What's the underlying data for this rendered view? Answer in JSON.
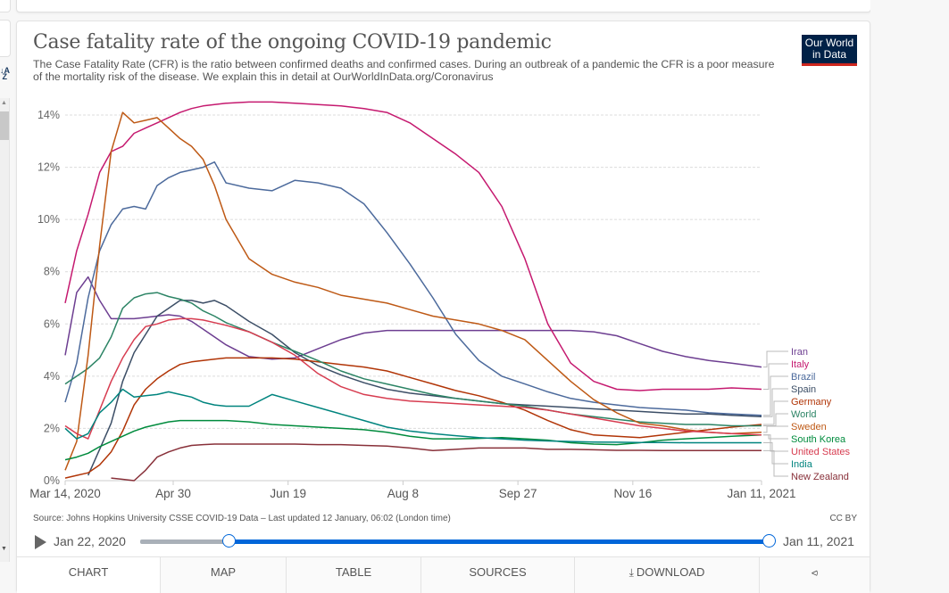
{
  "page": {
    "title": "Case fatality rate of the ongoing COVID-19 pandemic",
    "subtitle": "The Case Fatality Rate (CFR) is the ratio between confirmed deaths and confirmed cases. During an outbreak of a pandemic the CFR is a poor measure of the mortality risk of the disease. We explain this in detail at OurWorldInData.org/Coronavirus",
    "logo_line1": "Our World",
    "logo_line2": "in Data",
    "source": "Source: Johns Hopkins University CSSE COVID-19 Data – Last updated 12 January, 06:02 (London time)",
    "license": "CC BY",
    "timeline": {
      "start_label": "Jan 22, 2020",
      "end_label": "Jan 11, 2021",
      "start_handle_fraction": 0.14,
      "end_handle_fraction": 1.0
    },
    "tabs": [
      {
        "label": "CHART",
        "icon": "",
        "active": true
      },
      {
        "label": "MAP",
        "icon": "",
        "active": false
      },
      {
        "label": "TABLE",
        "icon": "",
        "active": false
      },
      {
        "label": "SOURCES",
        "icon": "",
        "active": false
      },
      {
        "label": "DOWNLOAD",
        "icon": "download-icon",
        "active": false
      },
      {
        "label": "",
        "icon": "share-icon",
        "active": false
      }
    ],
    "colors": {
      "accent": "#0066d9",
      "logo_bg": "#002147",
      "logo_bar": "#ce261e"
    }
  },
  "chart_data": {
    "type": "line",
    "title": "Case fatality rate of the ongoing COVID-19 pandemic",
    "xlabel": "",
    "ylabel": "",
    "x_unit": "days since Mar 14, 2020",
    "x": [
      0,
      5,
      10,
      15,
      20,
      25,
      30,
      35,
      40,
      45,
      50,
      55,
      60,
      65,
      70,
      80,
      90,
      100,
      110,
      120,
      130,
      140,
      150,
      160,
      170,
      180,
      190,
      200,
      210,
      220,
      230,
      240,
      250,
      260,
      270,
      280,
      290,
      303
    ],
    "xlim": [
      0,
      303
    ],
    "ylim": [
      0,
      14.5
    ],
    "x_ticks": [
      {
        "day": 0,
        "label": "Mar 14, 2020"
      },
      {
        "day": 47,
        "label": "Apr 30"
      },
      {
        "day": 97,
        "label": "Jun 19"
      },
      {
        "day": 147,
        "label": "Aug 8"
      },
      {
        "day": 197,
        "label": "Sep 27"
      },
      {
        "day": 247,
        "label": "Nov 16"
      },
      {
        "day": 303,
        "label": "Jan 11, 2021"
      }
    ],
    "y_ticks": [
      {
        "value": 0,
        "label": "0%"
      },
      {
        "value": 2,
        "label": "2%"
      },
      {
        "value": 4,
        "label": "4%"
      },
      {
        "value": 6,
        "label": "6%"
      },
      {
        "value": 8,
        "label": "8%"
      },
      {
        "value": 10,
        "label": "10%"
      },
      {
        "value": 12,
        "label": "12%"
      },
      {
        "value": 14,
        "label": "14%"
      }
    ],
    "grid": true,
    "legend": "right (line-end labels)",
    "series": [
      {
        "name": "Iran",
        "color": "#6d3e91",
        "values": [
          4.8,
          7.2,
          7.8,
          6.9,
          6.2,
          6.2,
          6.2,
          6.25,
          6.3,
          6.35,
          6.3,
          6.1,
          5.8,
          5.5,
          5.2,
          4.75,
          4.65,
          4.7,
          5.05,
          5.4,
          5.65,
          5.75,
          5.75,
          5.75,
          5.75,
          5.75,
          5.75,
          5.75,
          5.75,
          5.75,
          5.7,
          5.55,
          5.25,
          4.95,
          4.75,
          4.6,
          4.5,
          4.35
        ]
      },
      {
        "name": "Italy",
        "color": "#c5196f",
        "values": [
          6.8,
          8.8,
          10.2,
          11.8,
          12.6,
          12.8,
          13.3,
          13.5,
          13.7,
          13.9,
          14.1,
          14.25,
          14.35,
          14.4,
          14.45,
          14.5,
          14.5,
          14.45,
          14.4,
          14.35,
          14.25,
          14.1,
          13.7,
          13.1,
          12.5,
          11.8,
          10.5,
          8.5,
          6.0,
          4.5,
          3.8,
          3.5,
          3.45,
          3.5,
          3.5,
          3.5,
          3.55,
          3.5
        ]
      },
      {
        "name": "Brazil",
        "color": "#4c6a9c",
        "values": [
          3.0,
          4.5,
          7.0,
          8.8,
          9.8,
          10.4,
          10.5,
          10.4,
          11.3,
          11.6,
          11.8,
          11.9,
          12.0,
          12.2,
          11.4,
          11.2,
          11.1,
          11.5,
          11.4,
          11.2,
          10.6,
          9.5,
          8.3,
          7.0,
          5.6,
          4.6,
          4.0,
          3.7,
          3.4,
          3.15,
          3.0,
          2.9,
          2.8,
          2.75,
          2.7,
          2.6,
          2.55,
          2.5
        ]
      },
      {
        "name": "Spain",
        "color": "#3c4e66",
        "values": [
          null,
          null,
          0.2,
          1.2,
          2.2,
          3.8,
          4.9,
          5.6,
          6.3,
          6.6,
          6.9,
          6.9,
          6.8,
          6.9,
          6.7,
          6.1,
          5.6,
          4.9,
          4.4,
          4.05,
          3.75,
          3.5,
          3.35,
          3.25,
          3.15,
          3.05,
          2.95,
          2.9,
          2.85,
          2.8,
          2.75,
          2.7,
          2.65,
          2.6,
          2.55,
          2.55,
          2.5,
          2.45
        ]
      },
      {
        "name": "Germany",
        "color": "#b13507",
        "values": [
          0.1,
          0.2,
          0.3,
          0.6,
          1.1,
          1.9,
          2.9,
          3.5,
          3.9,
          4.2,
          4.45,
          4.55,
          4.6,
          4.65,
          4.7,
          4.7,
          4.7,
          4.65,
          4.55,
          4.45,
          4.35,
          4.2,
          3.95,
          3.7,
          3.45,
          3.25,
          3.0,
          2.7,
          2.3,
          1.95,
          1.75,
          1.7,
          1.65,
          1.75,
          1.85,
          1.95,
          2.05,
          2.15
        ]
      },
      {
        "name": "World",
        "color": "#2c8465",
        "values": [
          3.7,
          4.0,
          4.3,
          4.7,
          5.5,
          6.6,
          7.0,
          7.15,
          7.2,
          7.05,
          6.95,
          6.8,
          6.5,
          6.3,
          6.05,
          5.7,
          5.3,
          4.95,
          4.6,
          4.2,
          3.9,
          3.7,
          3.5,
          3.3,
          3.15,
          3.05,
          2.95,
          2.85,
          2.7,
          2.55,
          2.45,
          2.35,
          2.25,
          2.2,
          2.15,
          2.15,
          2.1,
          2.1
        ]
      },
      {
        "name": "Sweden",
        "color": "#be5915",
        "values": [
          0.4,
          1.5,
          4.8,
          9.0,
          12.6,
          14.1,
          13.7,
          13.8,
          13.9,
          13.5,
          13.1,
          12.8,
          12.3,
          11.3,
          10.0,
          8.5,
          7.9,
          7.6,
          7.4,
          7.1,
          6.95,
          6.8,
          6.55,
          6.3,
          6.15,
          6.0,
          5.75,
          5.4,
          4.6,
          3.8,
          3.1,
          2.6,
          2.2,
          2.1,
          1.95,
          1.85,
          1.8,
          1.85
        ]
      },
      {
        "name": "South Korea",
        "color": "#008b3d",
        "values": [
          0.8,
          0.9,
          1.05,
          1.3,
          1.5,
          1.7,
          1.9,
          2.05,
          2.15,
          2.25,
          2.3,
          2.3,
          2.3,
          2.3,
          2.3,
          2.25,
          2.15,
          2.1,
          2.05,
          2.0,
          1.95,
          1.85,
          1.7,
          1.6,
          1.6,
          1.62,
          1.65,
          1.6,
          1.55,
          1.45,
          1.4,
          1.38,
          1.45,
          1.55,
          1.6,
          1.65,
          1.7,
          1.75
        ]
      },
      {
        "name": "United States",
        "color": "#d73c50",
        "values": [
          2.1,
          1.8,
          1.6,
          2.7,
          3.8,
          4.7,
          5.4,
          5.9,
          6.0,
          6.15,
          6.2,
          6.2,
          6.15,
          6.05,
          5.95,
          5.7,
          5.3,
          4.8,
          4.1,
          3.6,
          3.3,
          3.15,
          3.05,
          3.0,
          2.95,
          2.9,
          2.85,
          2.8,
          2.7,
          2.55,
          2.4,
          2.25,
          2.1,
          2.0,
          1.9,
          1.85,
          1.8,
          1.75
        ]
      },
      {
        "name": "India",
        "color": "#00847e",
        "values": [
          2.0,
          1.6,
          1.8,
          2.6,
          3.0,
          3.5,
          3.2,
          3.25,
          3.3,
          3.4,
          3.3,
          3.2,
          3.0,
          2.9,
          2.85,
          2.85,
          3.3,
          3.05,
          2.8,
          2.55,
          2.3,
          2.05,
          1.9,
          1.8,
          1.72,
          1.65,
          1.6,
          1.55,
          1.52,
          1.5,
          1.48,
          1.47,
          1.46,
          1.46,
          1.45,
          1.45,
          1.45,
          1.45
        ]
      },
      {
        "name": "New Zealand",
        "color": "#883039",
        "values": [
          null,
          null,
          null,
          null,
          0.1,
          0.05,
          0.0,
          0.4,
          0.9,
          1.1,
          1.25,
          1.35,
          1.38,
          1.4,
          1.4,
          1.4,
          1.4,
          1.4,
          1.38,
          1.38,
          1.35,
          1.32,
          1.25,
          1.15,
          1.2,
          1.25,
          1.25,
          1.25,
          1.2,
          1.2,
          1.18,
          1.16,
          1.16,
          1.15,
          1.15,
          1.15,
          1.15,
          1.15
        ]
      }
    ]
  }
}
